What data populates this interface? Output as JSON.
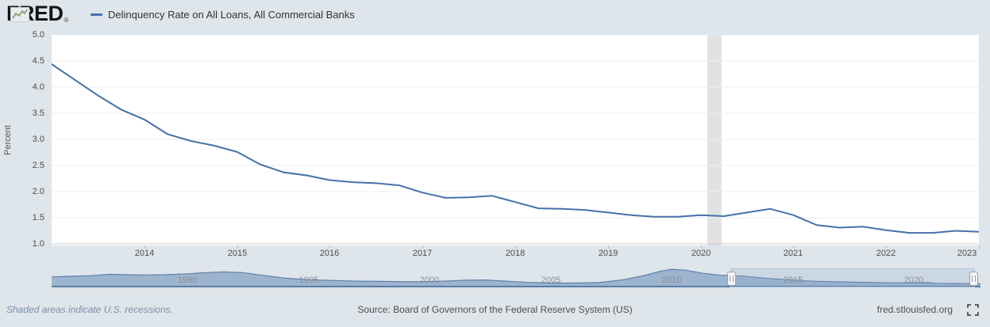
{
  "header": {
    "logo_text": "FRED",
    "logo_registered": "®",
    "series_label": "Delinquency Rate on All Loans, All Commercial Banks"
  },
  "footer": {
    "recession_note": "Shaded areas indicate U.S. recessions.",
    "source": "Source: Board of Governors of the Federal Reserve System (US)",
    "site": "fred.stlouisfed.org"
  },
  "icons": {
    "logo_sparkline": "sparkline-icon",
    "fullscreen": "fullscreen-expand-icon"
  },
  "colors": {
    "page_bg": "#dee5eb",
    "plot_bg": "#ffffff",
    "line": "#4572a7",
    "gridline": "#ededed",
    "axis_bottom": "#c8c8c8",
    "recession_band": "#e2e2e2",
    "navigator_fill": "#8ba7c7",
    "navigator_line": "#5f7fa8",
    "navigator_baseline": "#4e73a0",
    "logo_icon_green": "#7d9b63"
  },
  "chart_data": {
    "type": "line",
    "title": "Delinquency Rate on All Loans, All Commercial Banks",
    "xlabel": "",
    "ylabel": "Percent",
    "ylim": [
      1.0,
      5.0
    ],
    "grid": true,
    "legend_position": "top-left",
    "ytick_labels": [
      "5.0",
      "4.5",
      "4.0",
      "3.5",
      "3.0",
      "2.5",
      "2.0",
      "1.5",
      "1.0"
    ],
    "xtick_labels": [
      "2014",
      "2015",
      "2016",
      "2017",
      "2018",
      "2019",
      "2020",
      "2021",
      "2022",
      "2023"
    ],
    "x_years": [
      2013.0,
      2013.25,
      2013.5,
      2013.75,
      2014.0,
      2014.25,
      2014.5,
      2014.75,
      2015.0,
      2015.25,
      2015.5,
      2015.75,
      2016.0,
      2016.25,
      2016.5,
      2016.75,
      2017.0,
      2017.25,
      2017.5,
      2017.75,
      2018.0,
      2018.25,
      2018.5,
      2018.75,
      2019.0,
      2019.25,
      2019.5,
      2019.75,
      2020.0,
      2020.25,
      2020.5,
      2020.75,
      2021.0,
      2021.25,
      2021.5,
      2021.75,
      2022.0,
      2022.25,
      2022.5,
      2022.75,
      2023.0
    ],
    "values": [
      4.44,
      4.14,
      3.84,
      3.57,
      3.38,
      3.1,
      2.97,
      2.88,
      2.76,
      2.52,
      2.37,
      2.31,
      2.22,
      2.18,
      2.16,
      2.12,
      1.98,
      1.88,
      1.89,
      1.92,
      1.8,
      1.68,
      1.67,
      1.65,
      1.6,
      1.55,
      1.52,
      1.52,
      1.55,
      1.53,
      1.6,
      1.67,
      1.55,
      1.36,
      1.31,
      1.33,
      1.26,
      1.21,
      1.21,
      1.25,
      1.23
    ],
    "recession_bands": [
      {
        "start": 2020.07,
        "end": 2020.225
      }
    ],
    "navigator": {
      "xtick_labels": [
        "1990",
        "1995",
        "2000",
        "2005",
        "2010",
        "2015",
        "2020"
      ],
      "x_years": [
        1984.4,
        1985,
        1986,
        1986.8,
        1987.5,
        1988.3,
        1989,
        1990,
        1990.8,
        1991.5,
        1992.3,
        1993,
        1994,
        1995,
        1996,
        1997,
        1998,
        1999,
        2000,
        2000.8,
        2001.5,
        2002.3,
        2003,
        2004,
        2005,
        2006,
        2007,
        2008,
        2008.8,
        2009.5,
        2010,
        2010.6,
        2011.3,
        2012,
        2013,
        2013.8,
        2014.5,
        2015.3,
        2016,
        2017,
        2018,
        2019,
        2019.8,
        2020.5,
        2021,
        2021.8,
        2022.5,
        2023
      ],
      "values": [
        4.1,
        4.3,
        4.6,
        5.2,
        5.0,
        4.9,
        5.0,
        5.4,
        5.9,
        6.2,
        5.9,
        4.9,
        3.6,
        2.9,
        2.6,
        2.3,
        2.2,
        2.1,
        2.1,
        2.4,
        2.7,
        2.8,
        2.4,
        1.8,
        1.5,
        1.5,
        1.7,
        2.9,
        4.5,
        6.4,
        7.3,
        6.9,
        5.6,
        4.8,
        4.4,
        3.6,
        3.1,
        2.6,
        2.2,
        2.0,
        1.8,
        1.6,
        1.6,
        1.7,
        1.4,
        1.3,
        1.2,
        1.2
      ],
      "selected_range_years": [
        2012.4,
        2022.75
      ]
    }
  }
}
